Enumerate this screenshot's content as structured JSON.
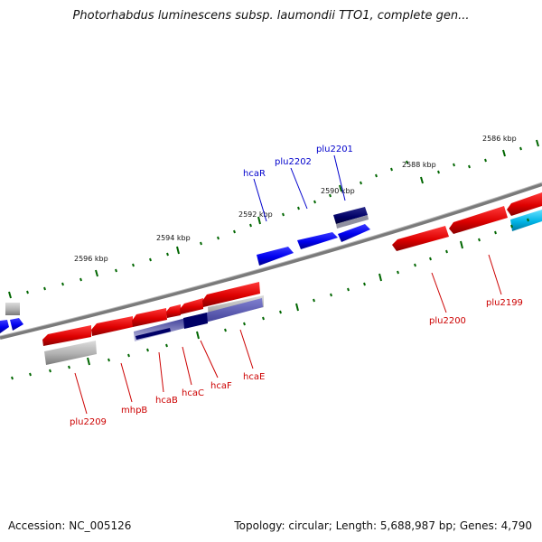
{
  "title": "Photorhabdus luminescens subsp. laumondii TTO1, complete gen...",
  "accession": "Accession: NC_005126",
  "summary": "Topology: circular; Length: 5,688,987 bp; Genes: 4,790",
  "colors": {
    "forward_gene": "#0000ee",
    "reverse_gene": "#dd0000",
    "backbone": "#808080",
    "tick": "#006600",
    "other_feature": "#a0a0a0",
    "highlight_forward": "#000066",
    "rna_feature": "#00b4e6"
  },
  "scale_labels": [
    "2586 kbp",
    "2588 kbp",
    "2590 kbp",
    "2592 kbp",
    "2594 kbp",
    "2596 kbp"
  ],
  "forward_labels": [
    "plu2201",
    "plu2202",
    "hcaR"
  ],
  "reverse_labels": [
    "plu2199",
    "plu2200",
    "hcaE",
    "hcaF",
    "hcaC",
    "hcaB",
    "mhpB",
    "plu2209"
  ]
}
